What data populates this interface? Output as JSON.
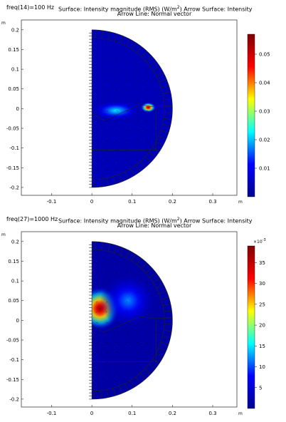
{
  "chart_data": [
    {
      "type": "heatmap",
      "freq_label": "freq(14)=100 Hz",
      "title_line1": "Surface: Intensity magnitude (RMS) (W/m",
      "title_sup": "2",
      "title_line1_tail": ")  Arrow Surface: Intensity",
      "title_line2": "Arrow Line: Normal vector",
      "axis_unit": "m",
      "x_ticks": [
        "-0.1",
        "0",
        "0.1",
        "0.2",
        "0.3"
      ],
      "x_tick_values": [
        -0.1,
        0,
        0.1,
        0.2,
        0.3
      ],
      "y_ticks": [
        "0.2",
        "0.15",
        "0.1",
        "0.05",
        "0",
        "-0.05",
        "-0.1",
        "-0.15",
        "-0.2"
      ],
      "y_tick_values": [
        0.2,
        0.15,
        0.1,
        0.05,
        0,
        -0.05,
        -0.1,
        -0.15,
        -0.2
      ],
      "xlim": [
        -0.175,
        0.36
      ],
      "ylim": [
        -0.22,
        0.225
      ],
      "domain_radius": 0.2,
      "colorbar": {
        "ticks": [
          "0.05",
          "0.04",
          "0.03",
          "0.02",
          "0.01"
        ],
        "tick_values": [
          0.05,
          0.04,
          0.03,
          0.02,
          0.01
        ],
        "range": [
          0,
          0.057
        ],
        "multiplier": ""
      },
      "hotspots": [
        {
          "x": 0.14,
          "y": 0.003,
          "value": 0.055,
          "sx": 0.02,
          "sy": 0.014
        },
        {
          "x": 0.06,
          "y": -0.005,
          "value": 0.022,
          "sx": 0.06,
          "sy": 0.025
        }
      ],
      "background_value": 0.004,
      "colormap": [
        "#00008f",
        "#0000ff",
        "#00ffff",
        "#ffff00",
        "#ff0000",
        "#800000"
      ]
    },
    {
      "type": "heatmap",
      "freq_label": "freq(27)=1000 Hz",
      "title_line1": "Surface: Intensity magnitude (RMS) (W/m",
      "title_sup": "2",
      "title_line1_tail": ")  Arrow Surface: Intensity",
      "title_line2": "Arrow Line: Normal vector",
      "axis_unit": "m",
      "x_ticks": [
        "-0.1",
        "0",
        "0.1",
        "0.2",
        "0.3"
      ],
      "x_tick_values": [
        -0.1,
        0,
        0.1,
        0.2,
        0.3
      ],
      "y_ticks": [
        "0.2",
        "0.15",
        "0.1",
        "0.05",
        "0",
        "-0.05",
        "-0.1",
        "-0.15",
        "-0.2"
      ],
      "y_tick_values": [
        0.2,
        0.15,
        0.1,
        0.05,
        0,
        -0.05,
        -0.1,
        -0.15,
        -0.2
      ],
      "xlim": [
        -0.175,
        0.36
      ],
      "ylim": [
        -0.22,
        0.225
      ],
      "domain_radius": 0.2,
      "colorbar": {
        "ticks": [
          "35",
          "30",
          "25",
          "20",
          "15",
          "10",
          "5"
        ],
        "tick_values": [
          35,
          30,
          25,
          20,
          15,
          10,
          5
        ],
        "range": [
          0,
          39
        ],
        "multiplier": "×10",
        "multiplier_exp": "-3"
      },
      "hotspots": [
        {
          "x": 0.02,
          "y": 0.03,
          "value": 38,
          "sx": 0.055,
          "sy": 0.06
        },
        {
          "x": 0.09,
          "y": 0.05,
          "value": 12,
          "sx": 0.07,
          "sy": 0.07
        }
      ],
      "background_value": 1.5,
      "colormap": [
        "#00008f",
        "#0000ff",
        "#00ffff",
        "#ffff00",
        "#ff0000",
        "#800000"
      ]
    }
  ]
}
